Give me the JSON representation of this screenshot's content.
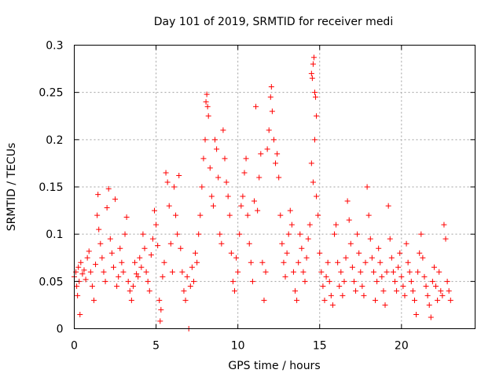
{
  "chart_data": {
    "type": "scatter",
    "title": "Day 101 of 2019, SRMTID for receiver medi",
    "xlabel": "GPS time / hours",
    "ylabel": "SRMTID / TECUs",
    "xlim": [
      0,
      24.5
    ],
    "ylim": [
      0,
      0.3
    ],
    "xticks": [
      0,
      5,
      10,
      15,
      20
    ],
    "xtick_labels": [
      "0",
      "5",
      "10",
      "15",
      "20"
    ],
    "yticks": [
      0,
      0.05,
      0.1,
      0.15,
      0.2,
      0.25,
      0.3
    ],
    "ytick_labels": [
      "0",
      "0.05",
      "0.1",
      "0.15",
      "0.2",
      "0.25",
      "0.3"
    ],
    "grid": true,
    "marker": "plus",
    "color": "#ff0000",
    "x_range_of_data": [
      0,
      23
    ],
    "series": [
      {
        "name": "SRMTID",
        "points": [
          [
            0.0,
            0.055
          ],
          [
            0.1,
            0.06
          ],
          [
            0.15,
            0.045
          ],
          [
            0.2,
            0.035
          ],
          [
            0.25,
            0.065
          ],
          [
            0.3,
            0.05
          ],
          [
            0.35,
            0.015
          ],
          [
            0.4,
            0.07
          ],
          [
            0.5,
            0.058
          ],
          [
            0.6,
            0.062
          ],
          [
            0.7,
            0.052
          ],
          [
            0.8,
            0.075
          ],
          [
            0.9,
            0.082
          ],
          [
            1.0,
            0.06
          ],
          [
            1.1,
            0.045
          ],
          [
            1.2,
            0.03
          ],
          [
            1.3,
            0.068
          ],
          [
            1.4,
            0.12
          ],
          [
            1.45,
            0.142
          ],
          [
            1.5,
            0.105
          ],
          [
            1.6,
            0.09
          ],
          [
            1.7,
            0.075
          ],
          [
            1.8,
            0.06
          ],
          [
            1.9,
            0.05
          ],
          [
            2.0,
            0.128
          ],
          [
            2.1,
            0.148
          ],
          [
            2.2,
            0.095
          ],
          [
            2.3,
            0.08
          ],
          [
            2.4,
            0.065
          ],
          [
            2.5,
            0.137
          ],
          [
            2.6,
            0.045
          ],
          [
            2.7,
            0.055
          ],
          [
            2.8,
            0.085
          ],
          [
            2.9,
            0.07
          ],
          [
            3.0,
            0.06
          ],
          [
            3.1,
            0.1
          ],
          [
            3.2,
            0.118
          ],
          [
            3.3,
            0.05
          ],
          [
            3.4,
            0.04
          ],
          [
            3.5,
            0.03
          ],
          [
            3.6,
            0.045
          ],
          [
            3.7,
            0.07
          ],
          [
            3.8,
            0.058
          ],
          [
            3.9,
            0.055
          ],
          [
            4.0,
            0.075
          ],
          [
            4.1,
            0.065
          ],
          [
            4.2,
            0.1
          ],
          [
            4.3,
            0.085
          ],
          [
            4.4,
            0.06
          ],
          [
            4.5,
            0.05
          ],
          [
            4.6,
            0.04
          ],
          [
            4.7,
            0.078
          ],
          [
            4.8,
            0.095
          ],
          [
            4.9,
            0.125
          ],
          [
            5.0,
            0.11
          ],
          [
            5.1,
            0.088
          ],
          [
            5.2,
            0.03
          ],
          [
            5.25,
            0.008
          ],
          [
            5.3,
            0.02
          ],
          [
            5.4,
            0.055
          ],
          [
            5.5,
            0.07
          ],
          [
            5.6,
            0.165
          ],
          [
            5.7,
            0.155
          ],
          [
            5.8,
            0.13
          ],
          [
            5.9,
            0.09
          ],
          [
            6.0,
            0.06
          ],
          [
            6.1,
            0.15
          ],
          [
            6.2,
            0.12
          ],
          [
            6.3,
            0.1
          ],
          [
            6.4,
            0.162
          ],
          [
            6.5,
            0.085
          ],
          [
            6.6,
            0.06
          ],
          [
            6.7,
            0.04
          ],
          [
            6.8,
            0.03
          ],
          [
            6.9,
            0.055
          ],
          [
            7.0,
            0.0
          ],
          [
            7.1,
            0.045
          ],
          [
            7.2,
            0.065
          ],
          [
            7.3,
            0.05
          ],
          [
            7.4,
            0.08
          ],
          [
            7.5,
            0.07
          ],
          [
            7.6,
            0.1
          ],
          [
            7.7,
            0.12
          ],
          [
            7.8,
            0.15
          ],
          [
            7.9,
            0.18
          ],
          [
            8.0,
            0.2
          ],
          [
            8.05,
            0.24
          ],
          [
            8.1,
            0.248
          ],
          [
            8.15,
            0.235
          ],
          [
            8.2,
            0.225
          ],
          [
            8.3,
            0.17
          ],
          [
            8.4,
            0.14
          ],
          [
            8.5,
            0.13
          ],
          [
            8.6,
            0.2
          ],
          [
            8.7,
            0.19
          ],
          [
            8.8,
            0.16
          ],
          [
            8.9,
            0.1
          ],
          [
            9.0,
            0.09
          ],
          [
            9.1,
            0.21
          ],
          [
            9.2,
            0.18
          ],
          [
            9.3,
            0.155
          ],
          [
            9.4,
            0.14
          ],
          [
            9.5,
            0.12
          ],
          [
            9.6,
            0.08
          ],
          [
            9.7,
            0.05
          ],
          [
            9.8,
            0.04
          ],
          [
            9.9,
            0.075
          ],
          [
            10.0,
            0.06
          ],
          [
            10.1,
            0.1
          ],
          [
            10.2,
            0.13
          ],
          [
            10.3,
            0.14
          ],
          [
            10.4,
            0.165
          ],
          [
            10.5,
            0.18
          ],
          [
            10.6,
            0.12
          ],
          [
            10.7,
            0.09
          ],
          [
            10.8,
            0.07
          ],
          [
            10.9,
            0.05
          ],
          [
            11.0,
            0.135
          ],
          [
            11.1,
            0.235
          ],
          [
            11.2,
            0.125
          ],
          [
            11.3,
            0.16
          ],
          [
            11.4,
            0.185
          ],
          [
            11.5,
            0.07
          ],
          [
            11.6,
            0.03
          ],
          [
            11.7,
            0.06
          ],
          [
            11.8,
            0.19
          ],
          [
            11.9,
            0.21
          ],
          [
            12.0,
            0.245
          ],
          [
            12.05,
            0.256
          ],
          [
            12.1,
            0.23
          ],
          [
            12.2,
            0.2
          ],
          [
            12.3,
            0.175
          ],
          [
            12.4,
            0.185
          ],
          [
            12.5,
            0.16
          ],
          [
            12.6,
            0.12
          ],
          [
            12.7,
            0.09
          ],
          [
            12.8,
            0.07
          ],
          [
            12.9,
            0.055
          ],
          [
            13.0,
            0.08
          ],
          [
            13.1,
            0.1
          ],
          [
            13.2,
            0.125
          ],
          [
            13.3,
            0.11
          ],
          [
            13.4,
            0.06
          ],
          [
            13.5,
            0.04
          ],
          [
            13.6,
            0.03
          ],
          [
            13.7,
            0.07
          ],
          [
            13.8,
            0.1
          ],
          [
            13.9,
            0.085
          ],
          [
            14.0,
            0.06
          ],
          [
            14.1,
            0.05
          ],
          [
            14.2,
            0.075
          ],
          [
            14.3,
            0.095
          ],
          [
            14.4,
            0.11
          ],
          [
            14.5,
            0.27
          ],
          [
            14.55,
            0.265
          ],
          [
            14.6,
            0.28
          ],
          [
            14.65,
            0.287
          ],
          [
            14.7,
            0.25
          ],
          [
            14.75,
            0.245
          ],
          [
            14.8,
            0.225
          ],
          [
            14.5,
            0.175
          ],
          [
            14.6,
            0.155
          ],
          [
            14.7,
            0.2
          ],
          [
            14.8,
            0.14
          ],
          [
            14.9,
            0.12
          ],
          [
            15.0,
            0.08
          ],
          [
            15.1,
            0.06
          ],
          [
            15.2,
            0.045
          ],
          [
            15.3,
            0.03
          ],
          [
            15.4,
            0.055
          ],
          [
            15.5,
            0.07
          ],
          [
            15.6,
            0.05
          ],
          [
            15.7,
            0.035
          ],
          [
            15.8,
            0.025
          ],
          [
            15.9,
            0.1
          ],
          [
            16.0,
            0.11
          ],
          [
            16.1,
            0.07
          ],
          [
            16.2,
            0.045
          ],
          [
            16.3,
            0.06
          ],
          [
            16.4,
            0.035
          ],
          [
            16.5,
            0.05
          ],
          [
            16.6,
            0.075
          ],
          [
            16.7,
            0.135
          ],
          [
            16.8,
            0.115
          ],
          [
            16.9,
            0.09
          ],
          [
            17.0,
            0.065
          ],
          [
            17.1,
            0.05
          ],
          [
            17.2,
            0.04
          ],
          [
            17.3,
            0.1
          ],
          [
            17.4,
            0.08
          ],
          [
            17.5,
            0.06
          ],
          [
            17.6,
            0.045
          ],
          [
            17.7,
            0.035
          ],
          [
            17.8,
            0.07
          ],
          [
            17.9,
            0.15
          ],
          [
            18.0,
            0.12
          ],
          [
            18.1,
            0.095
          ],
          [
            18.2,
            0.075
          ],
          [
            18.3,
            0.06
          ],
          [
            18.4,
            0.03
          ],
          [
            18.5,
            0.05
          ],
          [
            18.6,
            0.085
          ],
          [
            18.7,
            0.07
          ],
          [
            18.8,
            0.055
          ],
          [
            18.9,
            0.04
          ],
          [
            19.0,
            0.025
          ],
          [
            19.1,
            0.06
          ],
          [
            19.2,
            0.13
          ],
          [
            19.3,
            0.095
          ],
          [
            19.4,
            0.075
          ],
          [
            19.5,
            0.06
          ],
          [
            19.6,
            0.05
          ],
          [
            19.7,
            0.04
          ],
          [
            19.8,
            0.065
          ],
          [
            19.9,
            0.08
          ],
          [
            20.0,
            0.055
          ],
          [
            20.1,
            0.045
          ],
          [
            20.2,
            0.035
          ],
          [
            20.3,
            0.09
          ],
          [
            20.4,
            0.07
          ],
          [
            20.5,
            0.06
          ],
          [
            20.6,
            0.05
          ],
          [
            20.7,
            0.04
          ],
          [
            20.8,
            0.03
          ],
          [
            20.9,
            0.015
          ],
          [
            21.0,
            0.06
          ],
          [
            21.1,
            0.08
          ],
          [
            21.2,
            0.1
          ],
          [
            21.3,
            0.075
          ],
          [
            21.4,
            0.055
          ],
          [
            21.5,
            0.045
          ],
          [
            21.6,
            0.035
          ],
          [
            21.7,
            0.025
          ],
          [
            21.8,
            0.012
          ],
          [
            21.9,
            0.05
          ],
          [
            22.0,
            0.065
          ],
          [
            22.1,
            0.045
          ],
          [
            22.2,
            0.03
          ],
          [
            22.3,
            0.06
          ],
          [
            22.4,
            0.04
          ],
          [
            22.5,
            0.035
          ],
          [
            22.6,
            0.11
          ],
          [
            22.7,
            0.095
          ],
          [
            22.8,
            0.05
          ],
          [
            22.9,
            0.04
          ],
          [
            23.0,
            0.03
          ]
        ]
      }
    ]
  }
}
